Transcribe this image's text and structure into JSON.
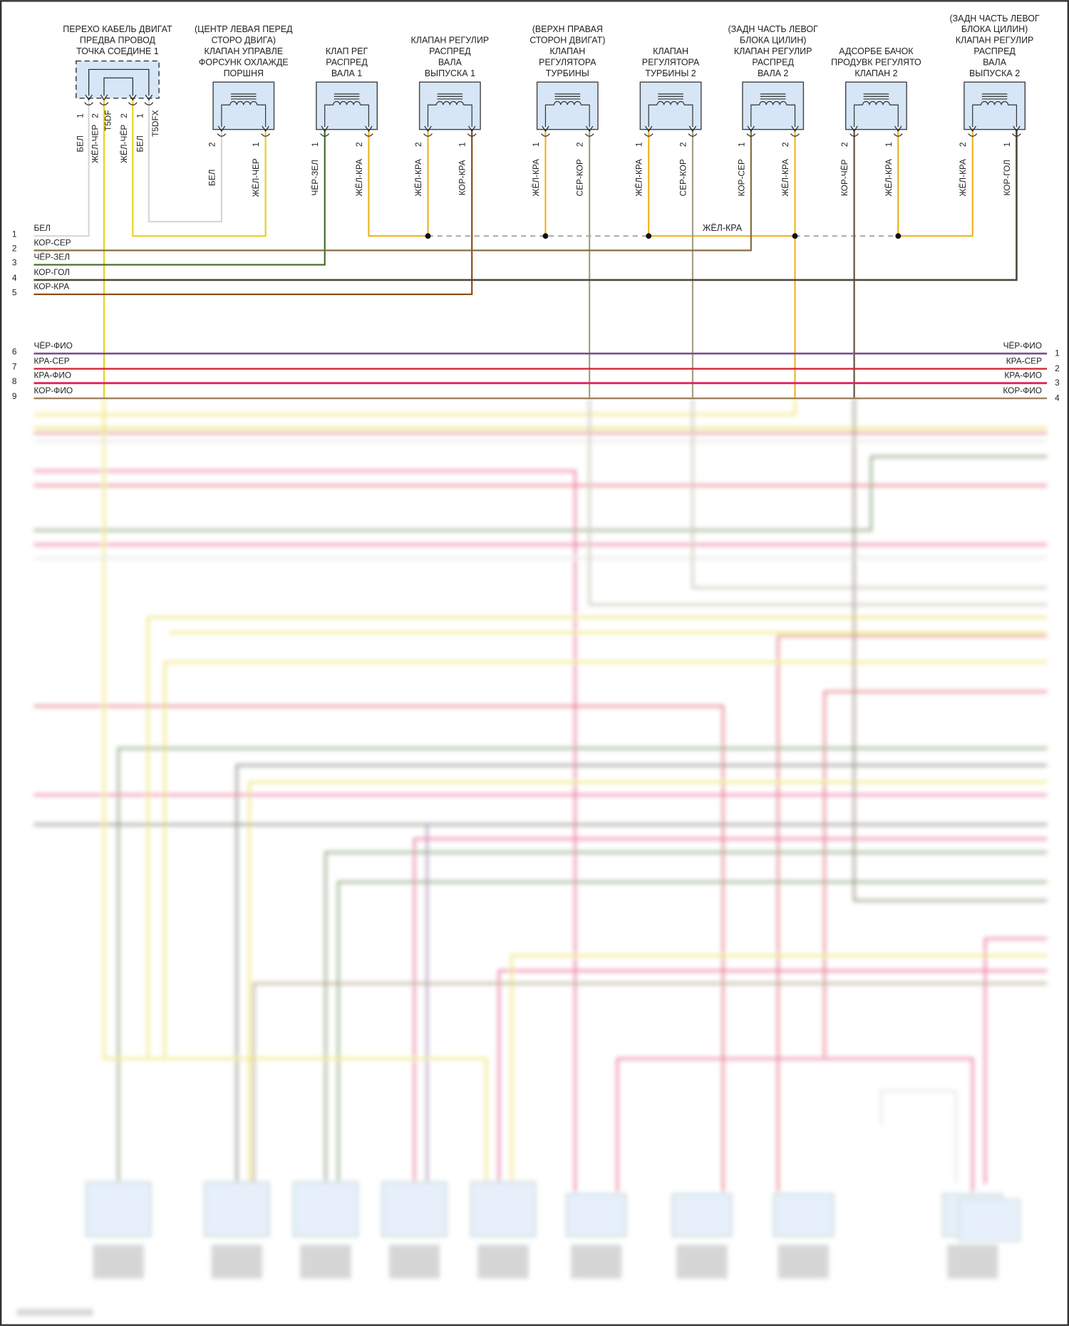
{
  "connector": {
    "label": [
      "ПЕРЕХО КАБЕЛЬ ДВИГАТ",
      "ПРЕДВА ПРОВОД",
      "ТОЧКА СОЕДИНЕ 1"
    ],
    "pins": [
      {
        "num": "1",
        "wire": "БЕЛ"
      },
      {
        "num": "2",
        "wire": "ЖЁЛ-ЧЕР"
      },
      {
        "num": "2",
        "wire": "ЖЁЛ-ЧЁР"
      },
      {
        "num": "1",
        "wire": "БЕЛ"
      }
    ],
    "codes": [
      "T5DF",
      "T5DFX"
    ]
  },
  "components": [
    {
      "label": [
        "(ЦЕНТР ЛЕВАЯ ПЕРЕД",
        "СТОРО ДВИГА)",
        "КЛАПАН УПРАВЛЕ",
        "ФОРСУНК ОХЛАЖДЕ",
        "ПОРШНЯ"
      ],
      "pins": [
        {
          "num": "2",
          "wire": "БЕЛ"
        },
        {
          "num": "1",
          "wire": "ЖЁЛ-ЧЕР"
        }
      ]
    },
    {
      "label": [
        "КЛАП РЕГ",
        "РАСПРЕД",
        "ВАЛА 1"
      ],
      "pins": [
        {
          "num": "1",
          "wire": "ЧЁР-ЗЕЛ"
        },
        {
          "num": "2",
          "wire": "ЖЁЛ-КРА"
        }
      ]
    },
    {
      "label": [
        "КЛАПАН РЕГУЛИР",
        "РАСПРЕД",
        "ВАЛА",
        "ВЫПУСКА 1"
      ],
      "pins": [
        {
          "num": "2",
          "wire": "ЖЁЛ-КРА"
        },
        {
          "num": "1",
          "wire": "КОР-КРА"
        }
      ]
    },
    {
      "label": [
        "(ВЕРХН ПРАВАЯ",
        "СТОРОН ДВИГАТ)",
        "КЛАПАН",
        "РЕГУЛЯТОРА",
        "ТУРБИНЫ"
      ],
      "pins": [
        {
          "num": "1",
          "wire": "ЖЁЛ-КРА"
        },
        {
          "num": "2",
          "wire": "СЕР-КОР"
        }
      ]
    },
    {
      "label": [
        "КЛАПАН",
        "РЕГУЛЯТОРА",
        "ТУРБИНЫ 2"
      ],
      "pins": [
        {
          "num": "1",
          "wire": "ЖЁЛ-КРА"
        },
        {
          "num": "2",
          "wire": "СЕР-КОР"
        }
      ]
    },
    {
      "label": [
        "(ЗАДН ЧАСТЬ ЛЕВОГ",
        "БЛОКА ЦИЛИН)",
        "КЛАПАН РЕГУЛИР",
        "РАСПРЕД",
        "ВАЛА 2"
      ],
      "pins": [
        {
          "num": "1",
          "wire": "КОР-СЕР"
        },
        {
          "num": "2",
          "wire": "ЖЁЛ-КРА"
        }
      ]
    },
    {
      "label": [
        "АДСОРБЕ БАЧОК",
        "ПРОДУВК РЕГУЛЯТО",
        "КЛАПАН 2"
      ],
      "pins": [
        {
          "num": "2",
          "wire": "КОР-ЧЁР"
        },
        {
          "num": "1",
          "wire": "ЖЁЛ-КРА"
        }
      ]
    },
    {
      "label": [
        "(ЗАДН ЧАСТЬ ЛЕВОГ",
        "БЛОКА ЦИЛИН)",
        "КЛАПАН РЕГУЛИР",
        "РАСПРЕД",
        "ВАЛА",
        "ВЫПУСКА 2"
      ],
      "pins": [
        {
          "num": "2",
          "wire": "ЖЁЛ-КРА"
        },
        {
          "num": "1",
          "wire": "КОР-ГОЛ"
        }
      ]
    }
  ],
  "junction_label": "ЖЁЛ-КРА",
  "left_rows": [
    {
      "num": "1",
      "wire": "БЕЛ"
    },
    {
      "num": "2",
      "wire": "КОР-СЕР"
    },
    {
      "num": "3",
      "wire": "ЧЁР-ЗЕЛ"
    },
    {
      "num": "4",
      "wire": "КОР-ГОЛ"
    },
    {
      "num": "5",
      "wire": "КОР-КРА"
    },
    {
      "num": "6",
      "wire": "ЧЁР-ФИО"
    },
    {
      "num": "7",
      "wire": "КРА-СЕР"
    },
    {
      "num": "8",
      "wire": "КРА-ФИО"
    },
    {
      "num": "9",
      "wire": "КОР-ФИО"
    }
  ],
  "right_rows": [
    {
      "num": "1",
      "wire": "ЧЁР-ФИО"
    },
    {
      "num": "2",
      "wire": "КРА-СЕР"
    },
    {
      "num": "3",
      "wire": "КРА-ФИО"
    },
    {
      "num": "4",
      "wire": "КОР-ФИО"
    }
  ],
  "wire_colors": {
    "white": "#d6d6d6",
    "yellow": "#e6d21a",
    "yellow_red": "#efb21c",
    "brown_grey": "#7d6a3a",
    "black_green": "#3f6b2a",
    "brown_blue": "#4b4a3c",
    "brown_red": "#8a4a14",
    "grey_brown": "#a59d84",
    "brown_black": "#5e5034",
    "black_violet": "#7b4f8c",
    "red_grey": "#d2263a",
    "red_violet": "#e0245e",
    "brown_violet": "#a08060",
    "component_fill": "#d6e6f7"
  }
}
